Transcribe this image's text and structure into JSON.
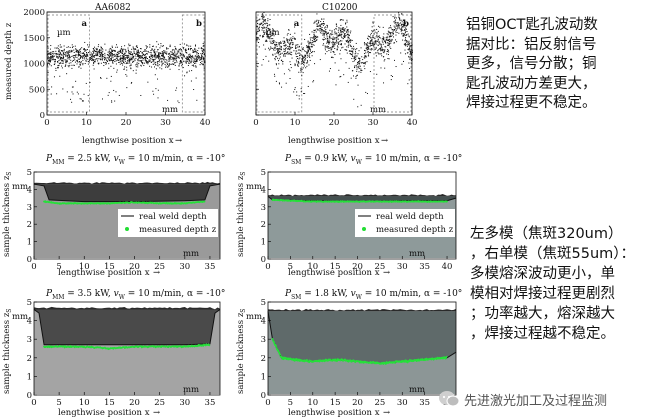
{
  "annotations": {
    "top_right_lines": [
      "铝铜OCT匙孔波动数",
      "据对比：铝反射信号",
      "更多，信号分散；铜",
      "匙孔波动方差更大，",
      "焊接过程更不稳定。"
    ],
    "bottom_right_lines": [
      "左多模（焦斑320um）",
      "，右单模（焦斑55um）：",
      "多模熔深波动更小，单",
      "模相对焊接过程更剧烈",
      "；功率越大，熔深越大",
      "，焊接过程越不稳定。"
    ]
  },
  "watermark": {
    "text": "先进激光加工及过程监测",
    "icon": "wechat-icon"
  },
  "chart_data": [
    {
      "type": "scatter",
      "title": "AA6082",
      "xlabel": "lengthwise position x",
      "ylabel": "measured depth z",
      "y_unit": "µm",
      "x_unit": "mm",
      "xticks": [
        "0",
        "10",
        "20",
        "30",
        "40"
      ],
      "yticks": [
        "0",
        "500",
        "1000",
        "1500",
        "2000"
      ],
      "xlim": [
        0,
        40
      ],
      "ylim": [
        0,
        2000
      ],
      "regions": [
        {
          "label": "a",
          "x": [
            0,
            11
          ]
        },
        {
          "label": "b",
          "x": [
            34,
            40
          ]
        }
      ],
      "series": [
        {
          "mean_depth": 1150,
          "spread": 250
        }
      ],
      "grid": false
    },
    {
      "type": "scatter",
      "title": "C10200",
      "xlabel": "lengthwise position x",
      "ylabel": "",
      "y_unit": "µm",
      "x_unit": "mm",
      "xticks": [
        "0",
        "10",
        "20",
        "30",
        "40"
      ],
      "yticks": [
        "0",
        "500",
        "1000",
        "1500",
        "2000"
      ],
      "xlim": [
        0,
        40
      ],
      "ylim": [
        0,
        2000
      ],
      "regions": [
        {
          "label": "a",
          "x": [
            0,
            12
          ]
        },
        {
          "label": "b",
          "x": [
            30,
            40
          ]
        }
      ],
      "series": [
        {
          "mean_depth": 1400,
          "spread": 350
        }
      ],
      "grid": false
    },
    {
      "type": "line",
      "title": "P_MM = 2.5 kW, v_W = 10 m/min, α = -10°",
      "title_parts": {
        "p": "P",
        "p_sub": "MM",
        "p_val": " = 2.5 kW, ",
        "v": "v",
        "v_sub": "W",
        "v_val": " = 10 m/min, α = -10°"
      },
      "xlabel": "lengthwise position x",
      "ylabel": "sample thickness z",
      "ylabel_sub": "S",
      "y_unit": "mm",
      "x_unit": "mm",
      "xticks": [
        "0",
        "5",
        "10",
        "15",
        "20",
        "25",
        "30",
        "35"
      ],
      "yticks": [
        "0",
        "1",
        "2",
        "3",
        "4",
        "5"
      ],
      "xlim": [
        0,
        37
      ],
      "ylim": [
        0,
        5
      ],
      "legend": [
        "real weld depth",
        "measured depth z"
      ],
      "legend_position": "right",
      "series": [
        {
          "name": "real weld depth",
          "x": [
            0,
            2,
            3,
            10,
            20,
            30,
            34,
            35,
            37
          ],
          "y": [
            4.3,
            4.2,
            3.4,
            3.3,
            3.3,
            3.35,
            3.4,
            4.2,
            4.3
          ]
        },
        {
          "name": "measured depth z",
          "x": [
            2,
            5,
            10,
            15,
            20,
            25,
            30,
            34
          ],
          "y": [
            3.3,
            3.2,
            3.2,
            3.2,
            3.25,
            3.2,
            3.2,
            3.3
          ]
        }
      ]
    },
    {
      "type": "line",
      "title": "P_SM = 0.9 kW, v_W = 10 m/min, α = -10°",
      "title_parts": {
        "p": "P",
        "p_sub": "SM",
        "p_val": " = 0.9 kW, ",
        "v": "v",
        "v_sub": "W",
        "v_val": " = 10 m/min, α = -10°"
      },
      "xlabel": "lengthwise position x",
      "ylabel": "sample thickness z",
      "ylabel_sub": "S",
      "y_unit": "mm",
      "x_unit": "mm",
      "xticks": [
        "0",
        "5",
        "10",
        "15",
        "20",
        "25",
        "30",
        "35",
        "40"
      ],
      "yticks": [
        "0",
        "1",
        "2",
        "3",
        "4",
        "5"
      ],
      "xlim": [
        0,
        42
      ],
      "ylim": [
        0,
        5
      ],
      "legend": [
        "real weld depth",
        "measured depth z"
      ],
      "legend_position": "right",
      "series": [
        {
          "name": "real weld depth",
          "x": [
            0,
            1,
            10,
            20,
            30,
            40,
            42
          ],
          "y": [
            3.6,
            3.4,
            3.35,
            3.3,
            3.35,
            3.35,
            3.5
          ]
        },
        {
          "name": "measured depth z",
          "x": [
            1,
            10,
            20,
            30,
            40
          ],
          "y": [
            3.4,
            3.3,
            3.3,
            3.3,
            3.3
          ]
        }
      ]
    },
    {
      "type": "line",
      "title": "P_MM = 3.5 kW, v_W = 10 m/min, α = -10°",
      "title_parts": {
        "p": "P",
        "p_sub": "MM",
        "p_val": " = 3.5 kW, ",
        "v": "v",
        "v_sub": "W",
        "v_val": " = 10 m/min, α = -10°"
      },
      "xlabel": "lengthwise position x",
      "ylabel": "sample thickness z",
      "ylabel_sub": "S",
      "y_unit": "mm",
      "x_unit": "mm",
      "xticks": [
        "0",
        "5",
        "10",
        "15",
        "20",
        "25",
        "30",
        "35"
      ],
      "yticks": [
        "0",
        "1",
        "2",
        "3",
        "4",
        "5"
      ],
      "xlim": [
        0,
        37
      ],
      "ylim": [
        0,
        5
      ],
      "series": [
        {
          "name": "real weld depth",
          "x": [
            0,
            1,
            2,
            10,
            20,
            30,
            35,
            36,
            37
          ],
          "y": [
            4.6,
            4.4,
            2.7,
            2.7,
            2.7,
            2.7,
            2.75,
            4.4,
            4.6
          ]
        },
        {
          "name": "measured depth z",
          "x": [
            2,
            5,
            10,
            15,
            20,
            25,
            30,
            35
          ],
          "y": [
            2.6,
            2.6,
            2.6,
            2.5,
            2.6,
            2.6,
            2.6,
            2.7
          ]
        }
      ]
    },
    {
      "type": "line",
      "title": "P_SM = 1.8 kW, v_W = 10 m/min, α = -10°",
      "title_parts": {
        "p": "P",
        "p_sub": "SM",
        "p_val": " = 1.8 kW, ",
        "v": "v",
        "v_sub": "W",
        "v_val": " = 10 m/min, α = -10°"
      },
      "xlabel": "lengthwise position x",
      "ylabel": "sample thickness z",
      "ylabel_sub": "S",
      "y_unit": "mm",
      "x_unit": "mm",
      "xticks": [
        "0",
        "5",
        "10",
        "15",
        "20",
        "25",
        "30",
        "35",
        "40"
      ],
      "yticks": [
        "0",
        "1",
        "2",
        "3",
        "4",
        "5"
      ],
      "xlim": [
        0,
        42
      ],
      "ylim": [
        0,
        5
      ],
      "series": [
        {
          "name": "real weld depth",
          "x": [
            0,
            1,
            3,
            6,
            10,
            15,
            20,
            25,
            30,
            35,
            40,
            42
          ],
          "y": [
            4.5,
            3.0,
            2.0,
            1.9,
            1.8,
            1.9,
            1.8,
            1.7,
            1.8,
            1.9,
            2.0,
            2.3
          ]
        },
        {
          "name": "measured depth z",
          "x": [
            1,
            3,
            6,
            10,
            15,
            20,
            25,
            30,
            35,
            40
          ],
          "y": [
            3.0,
            2.0,
            1.9,
            1.8,
            1.9,
            1.8,
            1.7,
            1.8,
            1.9,
            2.0
          ]
        }
      ]
    }
  ]
}
